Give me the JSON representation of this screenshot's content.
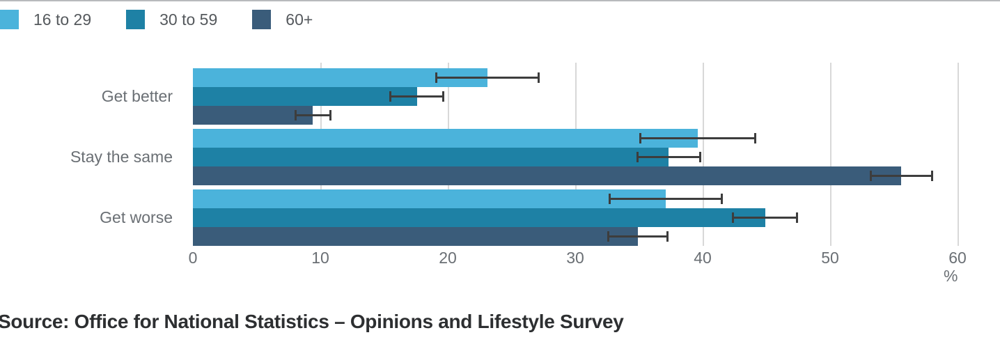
{
  "page": {
    "source_note": "Source: Office for National Statistics – Opinions and Lifestyle Survey"
  },
  "chart_data": {
    "type": "bar",
    "orientation": "horizontal",
    "title": "",
    "xlabel": "%",
    "ylabel": "",
    "xlim": [
      0,
      60
    ],
    "xticks": [
      0,
      10,
      20,
      30,
      40,
      50,
      60
    ],
    "grid": true,
    "legend_position": "top-left",
    "error_bars": true,
    "categories": [
      "Get better",
      "Stay the same",
      "Get worse"
    ],
    "series": [
      {
        "name": "16 to 29",
        "color": "#4bb3db",
        "values": [
          23.1,
          39.6,
          37.1
        ],
        "ci_low": [
          19.0,
          35.0,
          32.6
        ],
        "ci_high": [
          27.2,
          44.2,
          41.6
        ]
      },
      {
        "name": "30 to 59",
        "color": "#1e81a5",
        "values": [
          17.6,
          37.3,
          44.9
        ],
        "ci_low": [
          15.4,
          34.8,
          42.3
        ],
        "ci_high": [
          19.7,
          39.9,
          47.5
        ]
      },
      {
        "name": "60+",
        "color": "#3a5c7a",
        "values": [
          9.4,
          55.6,
          34.9
        ],
        "ci_low": [
          8.0,
          53.1,
          32.5
        ],
        "ci_high": [
          10.9,
          58.1,
          37.3
        ]
      }
    ],
    "colors": {
      "gridline": "#d8d8d8",
      "error_bar": "#3d3d3d",
      "axis_text": "#6a6f74",
      "legend_text": "#55595d"
    }
  }
}
